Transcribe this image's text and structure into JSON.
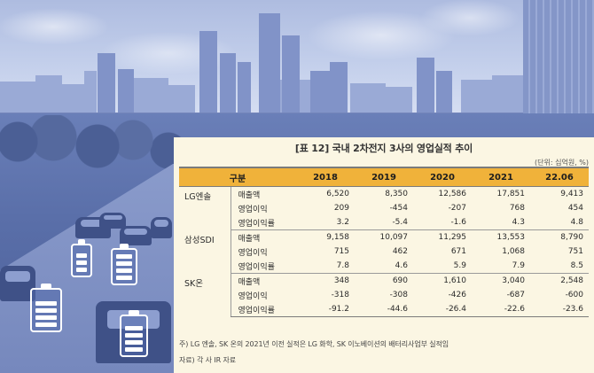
{
  "title": "[표 12] 국내 2차전지 3사의 영업실적 추이",
  "unit": "(단위: 십억원, %)",
  "header": [
    "구분",
    "",
    "2018",
    "2019",
    "2020",
    "2021",
    "22.06"
  ],
  "companies": [
    {
      "name": "LG엔솔",
      "rows": [
        {
          "metric": "매출액",
          "values": [
            "6,520",
            "8,350",
            "12,586",
            "17,851",
            "9,413"
          ]
        },
        {
          "metric": "영업이익",
          "values": [
            "209",
            "-454",
            "-207",
            "768",
            "454"
          ]
        },
        {
          "metric": "영업이익률",
          "values": [
            "3.2",
            "-5.4",
            "-1.6",
            "4.3",
            "4.8"
          ]
        }
      ]
    },
    {
      "name": "삼성SDI",
      "rows": [
        {
          "metric": "매출액",
          "values": [
            "9,158",
            "10,097",
            "11,295",
            "13,553",
            "8,790"
          ]
        },
        {
          "metric": "영업이익",
          "values": [
            "715",
            "462",
            "671",
            "1,068",
            "751"
          ]
        },
        {
          "metric": "영업이익률",
          "values": [
            "7.8",
            "4.6",
            "5.9",
            "7.9",
            "8.5"
          ]
        }
      ]
    },
    {
      "name": "SK온",
      "rows": [
        {
          "metric": "매출액",
          "values": [
            "348",
            "690",
            "1,610",
            "3,040",
            "2,548"
          ]
        },
        {
          "metric": "영업이익",
          "values": [
            "-318",
            "-308",
            "-426",
            "-687",
            "-600"
          ]
        },
        {
          "metric": "영업이익률",
          "values": [
            "-91.2",
            "-44.6",
            "-26.4",
            "-22.6",
            "-23.6"
          ]
        }
      ]
    }
  ],
  "footnote": "주) LG 엔솔, SK 온의 2021년 이전 실적은 LG 화학, SK 이노베이션의 배터리사업부 실적임",
  "source": "자료) 각 사 IR 자료",
  "colors": {
    "header_bg": "#f0b23a",
    "panel_bg": "#fbf6e3",
    "photo_tint": "#6a7fb8"
  }
}
